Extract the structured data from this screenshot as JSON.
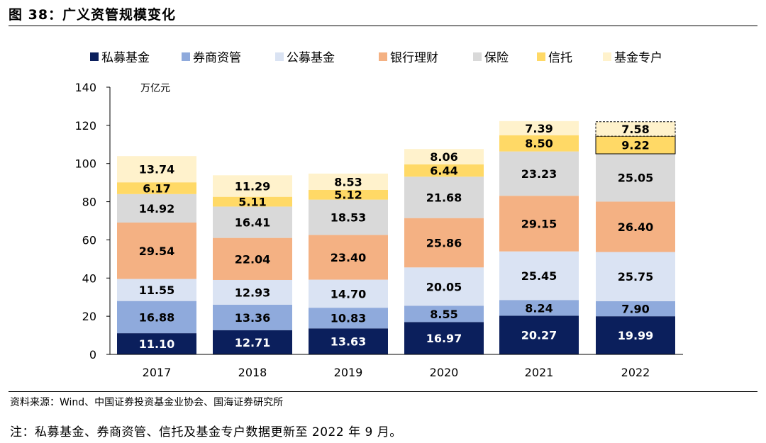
{
  "figure": {
    "title": "图 38：广义资管规模变化",
    "source": "资料来源：Wind、中国证券投资基金业协会、国海证券研究所",
    "note": "注：私募基金、券商资管、信托及基金专户数据更新至 2022 年 9 月。"
  },
  "chart_data": {
    "type": "bar",
    "stacked": true,
    "unit_label": "万亿元",
    "categories": [
      "2017",
      "2018",
      "2019",
      "2020",
      "2021",
      "2022"
    ],
    "ylim": [
      0,
      140
    ],
    "yticks": [
      0,
      20,
      40,
      60,
      80,
      100,
      120,
      140
    ],
    "grid": false,
    "legend_position": "top",
    "series": [
      {
        "name": "私募基金",
        "color": "#0b1f5c",
        "values": [
          11.1,
          12.71,
          13.63,
          16.97,
          20.27,
          19.99
        ],
        "labels": [
          "11.10",
          "12.71",
          "13.63",
          "16.97",
          "20.27",
          "19.99"
        ]
      },
      {
        "name": "券商资管",
        "color": "#8faadc",
        "values": [
          16.88,
          13.36,
          10.83,
          8.55,
          8.24,
          7.9
        ],
        "labels": [
          "16.88",
          "13.36",
          "10.83",
          "8.55",
          "8.24",
          "7.90"
        ]
      },
      {
        "name": "公募基金",
        "color": "#dae3f3",
        "values": [
          11.55,
          12.93,
          14.7,
          20.05,
          25.45,
          25.75
        ],
        "labels": [
          "11.55",
          "12.93",
          "14.70",
          "20.05",
          "25.45",
          "25.75"
        ]
      },
      {
        "name": "银行理财",
        "color": "#f4b183",
        "values": [
          29.54,
          22.04,
          23.4,
          25.86,
          29.15,
          26.4
        ],
        "labels": [
          "29.54",
          "22.04",
          "23.40",
          "25.86",
          "29.15",
          "26.40"
        ]
      },
      {
        "name": "保险",
        "color": "#d9d9d9",
        "values": [
          14.92,
          16.41,
          18.53,
          21.68,
          23.23,
          25.05
        ],
        "labels": [
          "14.92",
          "16.41",
          "18.53",
          "21.68",
          "23.23",
          "25.05"
        ]
      },
      {
        "name": "信托",
        "color": "#ffd966",
        "values": [
          6.17,
          5.11,
          5.12,
          6.44,
          8.5,
          9.22
        ],
        "labels": [
          "6.17",
          "5.11",
          "5.12",
          "6.44",
          "8.50",
          "9.22"
        ]
      },
      {
        "name": "基金专户",
        "color": "#fff2cc",
        "values": [
          13.74,
          11.29,
          8.53,
          8.06,
          7.39,
          7.58
        ],
        "labels": [
          "13.74",
          "11.29",
          "8.53",
          "8.06",
          "7.39",
          "7.58"
        ]
      }
    ]
  }
}
